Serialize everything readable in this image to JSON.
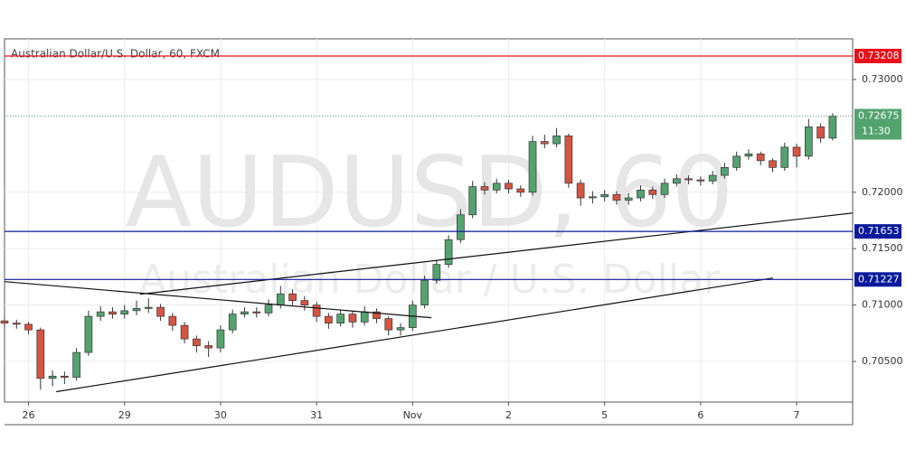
{
  "chart_data": {
    "type": "candlestick",
    "title": "Australian Dollar/U.S. Dollar, 60, FXCM",
    "watermark": "AUDUSD, 60",
    "watermark_subtitle": "Australian Dollar / U.S. Dollar",
    "xlim": [
      0,
      212
    ],
    "ylim": [
      0.7014,
      0.7336
    ],
    "xticks": [
      {
        "value": 6,
        "label": "26"
      },
      {
        "value": 30,
        "label": "29"
      },
      {
        "value": 54,
        "label": "30"
      },
      {
        "value": 78,
        "label": "31"
      },
      {
        "value": 102,
        "label": "Nov"
      },
      {
        "value": 126,
        "label": "2"
      },
      {
        "value": 150,
        "label": "5"
      },
      {
        "value": 174,
        "label": "6"
      },
      {
        "value": 198,
        "label": "7"
      }
    ],
    "yticks": [
      {
        "value": 0.705,
        "label": "0.70500"
      },
      {
        "value": 0.71,
        "label": "0.71000"
      },
      {
        "value": 0.715,
        "label": "0.71500"
      },
      {
        "value": 0.72,
        "label": "0.72000"
      },
      {
        "value": 0.73,
        "label": "0.73000"
      }
    ],
    "grid": true,
    "up_color": "#53a36f",
    "down_color": "#d75442",
    "x": [
      0,
      3,
      6,
      9,
      12,
      15,
      18,
      21,
      24,
      27,
      30,
      33,
      36,
      39,
      42,
      45,
      48,
      51,
      54,
      57,
      60,
      63,
      66,
      69,
      72,
      75,
      78,
      81,
      84,
      87,
      90,
      93,
      96,
      99,
      102,
      105,
      108,
      111,
      114,
      117,
      120,
      123,
      126,
      129,
      132,
      135,
      138,
      141,
      144,
      147,
      150,
      153,
      156,
      159,
      162,
      165,
      168,
      171,
      174,
      177,
      180,
      183,
      186,
      189,
      192,
      195,
      198,
      201,
      204,
      207
    ],
    "open": [
      0.7086,
      0.7084,
      0.7083,
      0.7078,
      0.7035,
      0.7037,
      0.7036,
      0.7058,
      0.709,
      0.7094,
      0.7092,
      0.7095,
      0.7097,
      0.7098,
      0.709,
      0.7082,
      0.707,
      0.7064,
      0.7062,
      0.7078,
      0.7092,
      0.7094,
      0.7093,
      0.71,
      0.711,
      0.7104,
      0.71,
      0.709,
      0.7084,
      0.7092,
      0.7085,
      0.7094,
      0.7088,
      0.7078,
      0.708,
      0.71,
      0.7122,
      0.7136,
      0.7158,
      0.718,
      0.7205,
      0.7202,
      0.7208,
      0.7203,
      0.72,
      0.7245,
      0.7243,
      0.725,
      0.7208,
      0.7195,
      0.7196,
      0.7198,
      0.7193,
      0.7195,
      0.7202,
      0.7198,
      0.7208,
      0.7212,
      0.7211,
      0.721,
      0.7215,
      0.7222,
      0.7232,
      0.7234,
      0.7228,
      0.7222,
      0.724,
      0.7232,
      0.7258,
      0.7248
    ],
    "high": [
      0.7089,
      0.7087,
      0.7085,
      0.708,
      0.7042,
      0.7041,
      0.7062,
      0.7095,
      0.7099,
      0.7098,
      0.71,
      0.7104,
      0.7106,
      0.7101,
      0.7093,
      0.7085,
      0.7073,
      0.7068,
      0.7082,
      0.7096,
      0.7098,
      0.7098,
      0.7105,
      0.7117,
      0.7114,
      0.7108,
      0.7103,
      0.7093,
      0.7096,
      0.7095,
      0.7099,
      0.7097,
      0.709,
      0.7084,
      0.7104,
      0.7126,
      0.714,
      0.7162,
      0.7185,
      0.721,
      0.7209,
      0.7212,
      0.7211,
      0.7206,
      0.725,
      0.7251,
      0.7257,
      0.7252,
      0.7211,
      0.7201,
      0.7202,
      0.7201,
      0.7199,
      0.7206,
      0.7205,
      0.7212,
      0.7216,
      0.7215,
      0.7214,
      0.7219,
      0.7226,
      0.7236,
      0.7238,
      0.7236,
      0.723,
      0.7244,
      0.7243,
      0.7265,
      0.7261,
      0.727
    ],
    "low": [
      0.708,
      0.7079,
      0.7074,
      0.7025,
      0.7028,
      0.703,
      0.7033,
      0.7055,
      0.7086,
      0.7088,
      0.7088,
      0.7091,
      0.7093,
      0.7086,
      0.7077,
      0.7066,
      0.7058,
      0.7054,
      0.7058,
      0.7075,
      0.7089,
      0.7089,
      0.709,
      0.7097,
      0.71,
      0.7095,
      0.7085,
      0.7079,
      0.7081,
      0.708,
      0.7082,
      0.7084,
      0.7073,
      0.7073,
      0.7077,
      0.7097,
      0.7119,
      0.7133,
      0.7155,
      0.7177,
      0.7198,
      0.7199,
      0.7199,
      0.7196,
      0.7197,
      0.7239,
      0.724,
      0.7204,
      0.7188,
      0.719,
      0.7192,
      0.7189,
      0.7189,
      0.7192,
      0.7194,
      0.7195,
      0.7205,
      0.7207,
      0.7206,
      0.7207,
      0.7212,
      0.7219,
      0.7229,
      0.7224,
      0.7218,
      0.7219,
      0.7222,
      0.7229,
      0.7244,
      0.7246
    ],
    "close": [
      0.7084,
      0.7083,
      0.7078,
      0.7035,
      0.7037,
      0.7036,
      0.7058,
      0.709,
      0.7094,
      0.7092,
      0.7095,
      0.7097,
      0.7098,
      0.709,
      0.7082,
      0.707,
      0.7064,
      0.7062,
      0.7078,
      0.7092,
      0.7094,
      0.7093,
      0.71,
      0.711,
      0.7104,
      0.71,
      0.709,
      0.7084,
      0.7092,
      0.7085,
      0.7094,
      0.7088,
      0.7078,
      0.708,
      0.71,
      0.7122,
      0.7136,
      0.7158,
      0.718,
      0.7205,
      0.7202,
      0.7208,
      0.7203,
      0.72,
      0.7245,
      0.7243,
      0.725,
      0.7208,
      0.7195,
      0.7196,
      0.7198,
      0.7193,
      0.7195,
      0.7202,
      0.7198,
      0.7208,
      0.7212,
      0.7211,
      0.721,
      0.7215,
      0.7222,
      0.7232,
      0.7234,
      0.7228,
      0.7222,
      0.724,
      0.7232,
      0.7258,
      0.7248,
      0.72675
    ],
    "levels": [
      {
        "value": 0.73208,
        "label": "0.73208",
        "color": "#e8101a"
      },
      {
        "value": 0.71653,
        "label": "0.71653",
        "color": "#0a1a9c"
      },
      {
        "value": 0.71227,
        "label": "0.71227",
        "color": "#0a1a9c"
      }
    ],
    "last_price": {
      "value": 0.72675,
      "label": "0.72675",
      "countdown": "11:30",
      "color": "#53a36f"
    },
    "trend_lines": [
      {
        "x": [
          0,
          106.7
        ],
        "y": [
          0.71208,
          0.70888
        ]
      },
      {
        "x": [
          12.9,
          192.1
        ],
        "y": [
          0.70232,
          0.7124
        ]
      },
      {
        "x": [
          33.9,
          212
        ],
        "y": [
          0.71096,
          0.71816
        ]
      }
    ]
  }
}
